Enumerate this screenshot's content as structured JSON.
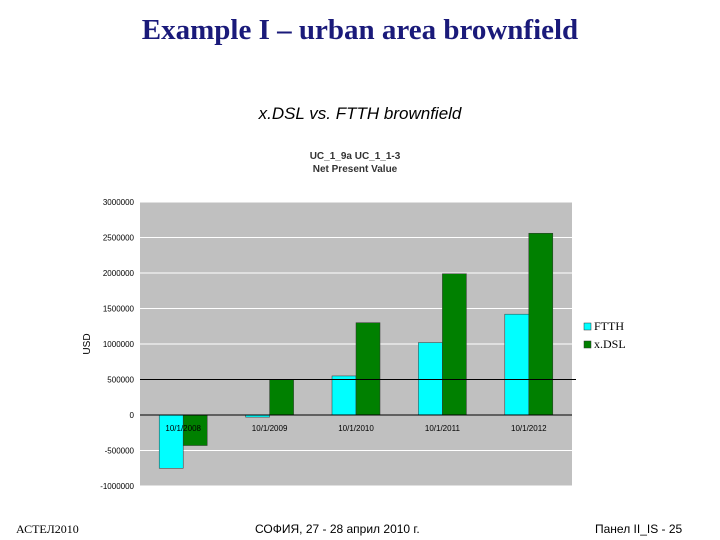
{
  "slide": {
    "title": "Example I – urban area brownfield",
    "chart_heading": "x.DSL vs. FTTH  brownfield"
  },
  "footer": {
    "left": "АСТЕЛ2010",
    "center": "СОФИЯ, 27 - 28 април 2010 г.",
    "right": "Панел II_IS -  25"
  },
  "chart_data": {
    "type": "bar",
    "title": "UC_1_9a UC_1_1-3",
    "subtitle": "Net Present Value",
    "ylabel": "USD",
    "xlabel": "",
    "categories": [
      "10/1/2008",
      "10/1/2009",
      "10/1/2010",
      "10/1/2011",
      "10/1/2012"
    ],
    "series": [
      {
        "name": "FTTH",
        "color": "#00ffff",
        "values": [
          -750000,
          -30000,
          550000,
          1020000,
          1420000
        ]
      },
      {
        "name": "x.DSL",
        "color": "#008000",
        "values": [
          -430000,
          500000,
          1300000,
          1990000,
          2560000
        ]
      }
    ],
    "yticks": [
      "3000000",
      "2500000",
      "2000000",
      "1500000",
      "1000000",
      "500000",
      "0",
      "-500000",
      "-1000000"
    ],
    "ylim": [
      -1000000,
      3000000
    ],
    "legend_position": "right",
    "reference_line": 500000,
    "plot_background": "#c0c0c0"
  }
}
